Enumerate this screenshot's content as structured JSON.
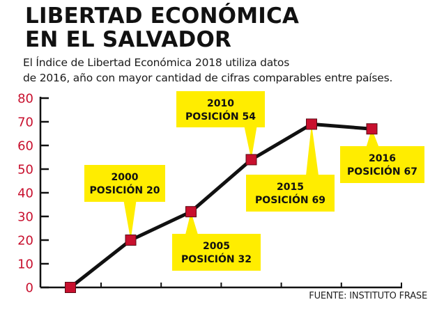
{
  "header": {
    "title_line1": "LIBERTAD ECONÓMICA",
    "title_line2": "EN EL SALVADOR",
    "subtitle_line1": "El Índice de Libertad Económica 2018 utiliza datos",
    "subtitle_line2": "de 2016, año con mayor cantidad de cifras comparables entre países."
  },
  "source": "FUENTE: INSTITUTO FRASE",
  "colors": {
    "axis_label": "#c8102e",
    "marker": "#c8102e",
    "line": "#111111",
    "callout_bg": "#ffed00"
  },
  "chart_data": {
    "type": "line",
    "title": "LIBERTAD ECONÓMICA EN EL SALVADOR",
    "xlabel": "",
    "ylabel": "",
    "ylim": [
      0,
      80
    ],
    "yticks": [
      0,
      10,
      20,
      30,
      40,
      50,
      60,
      70,
      80
    ],
    "grid": false,
    "legend": "none",
    "points": [
      {
        "x_index": 0,
        "year": "",
        "value": 0,
        "label": null
      },
      {
        "x_index": 1,
        "year": "2000",
        "value": 20,
        "label": [
          "2000",
          "POSICIÓN 20"
        ],
        "callout": "above"
      },
      {
        "x_index": 2,
        "year": "2005",
        "value": 32,
        "label": [
          "2005",
          "POSICIÓN 32"
        ],
        "callout": "below"
      },
      {
        "x_index": 3,
        "year": "2010",
        "value": 54,
        "label": [
          "2010",
          "POSICIÓN 54"
        ],
        "callout": "above"
      },
      {
        "x_index": 4,
        "year": "2015",
        "value": 69,
        "label": [
          "2015",
          "POSICIÓN 69"
        ],
        "callout": "below"
      },
      {
        "x_index": 5,
        "year": "2016",
        "value": 67,
        "label": [
          "2016",
          "POSICIÓN 67"
        ],
        "callout": "below"
      }
    ]
  }
}
